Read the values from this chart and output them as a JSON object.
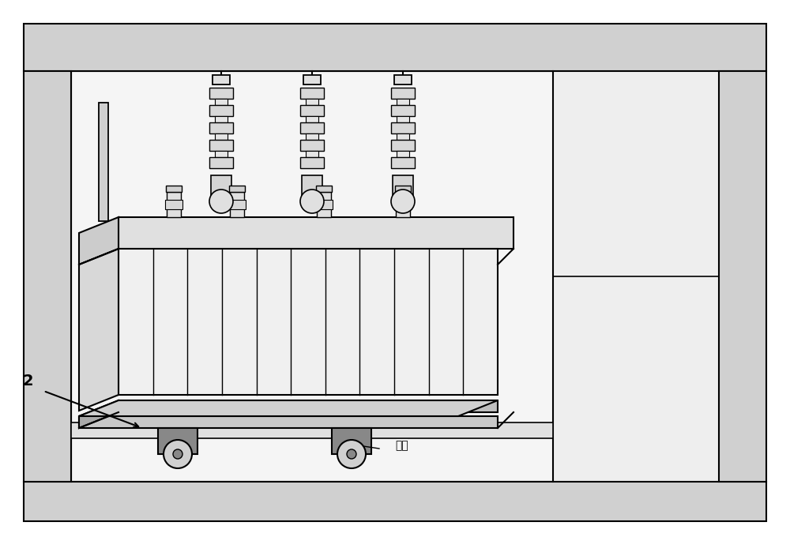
{
  "bg_color": "#ffffff",
  "line_color": "#000000",
  "fill_light": "#e8e8e8",
  "fill_medium": "#d0d0d0",
  "fill_dark": "#b0b0b0",
  "label_2": "2",
  "label_wheel": "轮架",
  "title": ""
}
